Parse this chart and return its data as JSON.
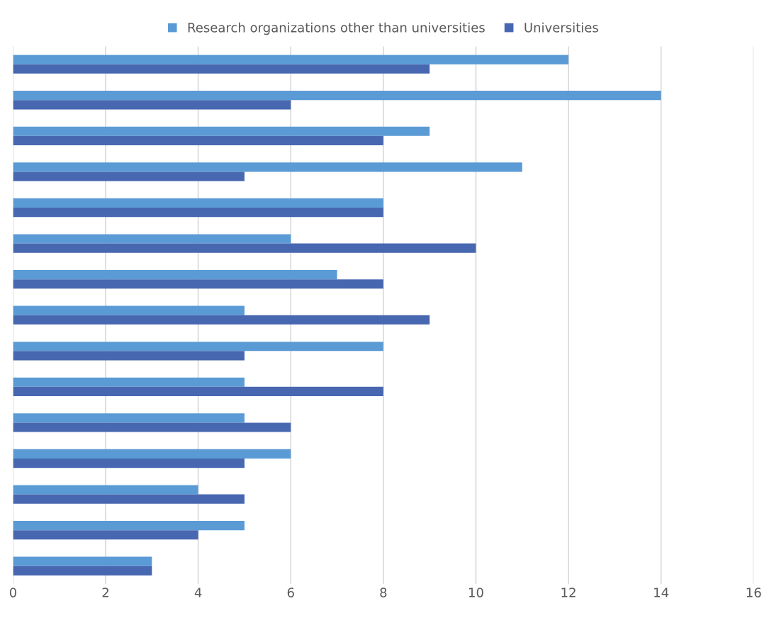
{
  "chart_data": {
    "type": "bar",
    "orientation": "horizontal",
    "categories": [
      null,
      null,
      null,
      null,
      null,
      null,
      null,
      null,
      null,
      null,
      null,
      null,
      null,
      null,
      null
    ],
    "series": [
      {
        "name": "Research organizations other than universities",
        "color": "#5b9bd5",
        "values": [
          12,
          14,
          9,
          11,
          8,
          6,
          7,
          5,
          8,
          5,
          5,
          6,
          4,
          5,
          3
        ]
      },
      {
        "name": "Universities",
        "color": "#4767b0",
        "values": [
          9,
          6,
          8,
          5,
          8,
          10,
          8,
          9,
          5,
          8,
          6,
          5,
          5,
          4,
          3
        ]
      }
    ],
    "xlim": [
      0,
      16
    ],
    "xticks": [
      0,
      2,
      4,
      6,
      8,
      10,
      12,
      14,
      16
    ],
    "grid": "x",
    "legend": "top"
  }
}
